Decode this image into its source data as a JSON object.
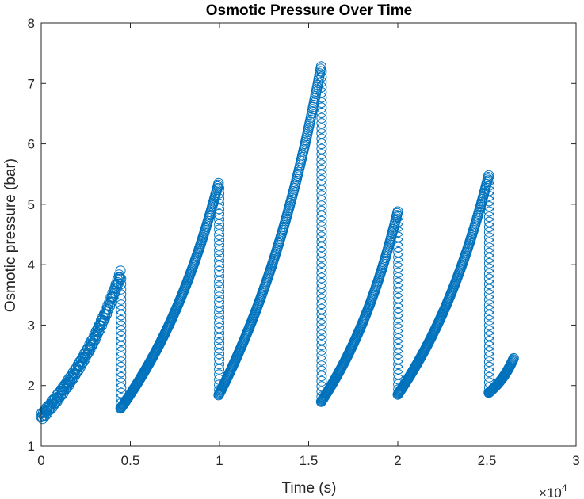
{
  "chart_data": {
    "type": "scatter",
    "title": "Osmotic Pressure Over Time",
    "xlabel": "Time (s)",
    "ylabel": "Osmotic pressure (bar)",
    "x_exponent_label": {
      "base": "×10",
      "exp": "4"
    },
    "xlim": [
      0,
      30000
    ],
    "ylim": [
      1,
      8
    ],
    "xticks": [
      0,
      5000,
      10000,
      15000,
      20000,
      25000,
      30000
    ],
    "xtick_labels": [
      "0",
      "0.5",
      "1",
      "1.5",
      "2",
      "2.5",
      "3"
    ],
    "yticks": [
      1,
      2,
      3,
      4,
      5,
      6,
      7,
      8
    ],
    "ytick_labels": [
      "1",
      "2",
      "3",
      "4",
      "5",
      "6",
      "7",
      "8"
    ],
    "grid": false,
    "box": true,
    "marker": "circle-open",
    "marker_color": "#0072BD",
    "series": [
      {
        "segments": [
          {
            "x_start": 0,
            "x_end": 4450,
            "y_start": 1.48,
            "y_end": 3.85,
            "y_drop_to": 1.62
          },
          {
            "x_start": 4450,
            "x_end": 9950,
            "y_start": 1.62,
            "y_end": 5.35,
            "y_drop_to": 1.84
          },
          {
            "x_start": 9950,
            "x_end": 15700,
            "y_start": 1.84,
            "y_end": 7.28,
            "y_drop_to": 1.73
          },
          {
            "x_start": 15700,
            "x_end": 20000,
            "y_start": 1.73,
            "y_end": 4.88,
            "y_drop_to": 1.85
          },
          {
            "x_start": 20000,
            "x_end": 25100,
            "y_start": 1.85,
            "y_end": 5.48,
            "y_drop_to": 1.88
          },
          {
            "x_start": 25100,
            "x_end": 26500,
            "y_start": 1.88,
            "y_end": 2.45,
            "y_drop_to": null
          }
        ]
      }
    ]
  }
}
